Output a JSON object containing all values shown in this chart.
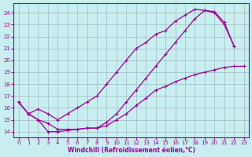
{
  "xlabel": "Windchill (Refroidissement éolien,°C)",
  "bg_color": "#c8eef0",
  "grid_color": "#a0b8c0",
  "line_color": "#990099",
  "xlim": [
    -0.5,
    23.5
  ],
  "ylim": [
    13.5,
    24.8
  ],
  "yticks": [
    14,
    15,
    16,
    17,
    18,
    19,
    20,
    21,
    22,
    23,
    24
  ],
  "xticks": [
    0,
    1,
    2,
    3,
    4,
    5,
    6,
    7,
    8,
    9,
    10,
    11,
    12,
    13,
    14,
    15,
    16,
    17,
    18,
    19,
    20,
    21,
    22,
    23
  ],
  "line1_x": [
    0,
    1,
    2,
    3,
    4,
    5,
    6,
    7,
    8,
    9,
    10,
    11,
    12,
    13,
    14,
    15,
    16,
    17,
    18,
    19,
    20,
    21,
    22
  ],
  "line1_y": [
    16.5,
    15.5,
    15.9,
    15.5,
    15.0,
    15.5,
    16.0,
    16.5,
    17.0,
    18.0,
    19.0,
    20.0,
    21.0,
    21.5,
    22.2,
    22.5,
    23.3,
    23.8,
    24.3,
    24.2,
    24.0,
    23.0,
    21.2
  ],
  "line2_x": [
    0,
    1,
    2,
    3,
    4,
    5,
    6,
    7,
    8,
    9,
    10,
    11,
    12,
    13,
    14,
    15,
    16,
    17,
    18,
    19,
    20,
    21,
    22
  ],
  "line2_y": [
    16.5,
    15.5,
    15.0,
    14.7,
    14.2,
    14.2,
    14.2,
    14.3,
    14.3,
    14.8,
    15.5,
    16.5,
    17.5,
    18.5,
    19.5,
    20.5,
    21.5,
    22.5,
    23.5,
    24.2,
    24.1,
    23.2,
    21.2
  ],
  "line3_x": [
    0,
    1,
    2,
    3,
    4,
    5,
    6,
    7,
    8,
    9,
    10,
    11,
    12,
    13,
    14,
    15,
    16,
    17,
    18,
    19,
    20,
    21,
    22,
    23
  ],
  "line3_y": [
    16.5,
    15.5,
    15.0,
    14.0,
    14.0,
    14.1,
    14.2,
    14.3,
    14.3,
    14.5,
    15.0,
    15.5,
    16.2,
    16.8,
    17.5,
    17.8,
    18.2,
    18.5,
    18.8,
    19.0,
    19.2,
    19.4,
    19.5,
    19.5
  ]
}
